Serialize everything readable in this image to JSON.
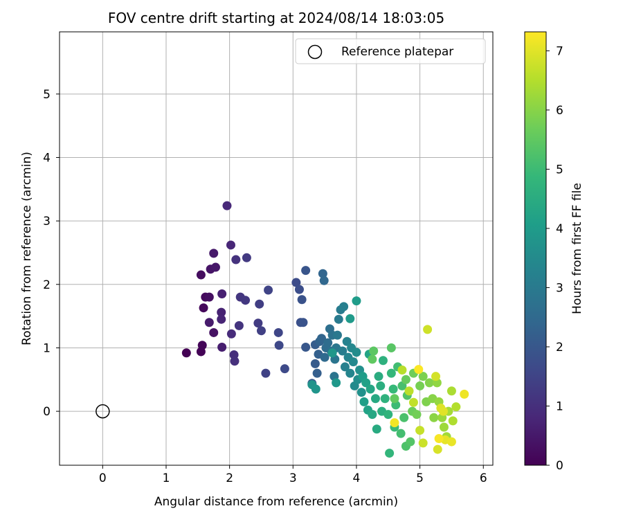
{
  "chart_data": {
    "type": "scatter",
    "title": "FOV centre drift starting at 2024/08/14 18:03:05",
    "xlabel": "Angular distance from reference (arcmin)",
    "ylabel": "Rotation from reference (arcmin)",
    "xlim": [
      -0.68,
      6.15
    ],
    "ylim": [
      -0.85,
      5.98
    ],
    "xticks": [
      0,
      1,
      2,
      3,
      4,
      5,
      6
    ],
    "yticks": [
      0,
      1,
      2,
      3,
      4,
      5
    ],
    "grid": true,
    "legend": {
      "position": "top-right",
      "entries": [
        "Reference platepar"
      ]
    },
    "colorbar": {
      "label": "Hours from first FF file",
      "range": [
        0,
        7.32
      ],
      "ticks": [
        0,
        1,
        2,
        3,
        4,
        5,
        6,
        7
      ],
      "colormap": "viridis"
    },
    "reference": {
      "x": 0,
      "y": 0
    },
    "points": [
      [
        1.32,
        0.92,
        0.0
      ],
      [
        1.55,
        0.94,
        0.05
      ],
      [
        1.57,
        1.04,
        0.1
      ],
      [
        1.59,
        1.63,
        0.15
      ],
      [
        1.62,
        1.8,
        0.2
      ],
      [
        1.55,
        2.15,
        0.25
      ],
      [
        1.68,
        1.8,
        0.3
      ],
      [
        1.75,
        1.24,
        0.35
      ],
      [
        1.7,
        2.24,
        0.4
      ],
      [
        1.78,
        2.27,
        0.45
      ],
      [
        1.75,
        2.49,
        0.5
      ],
      [
        1.68,
        1.4,
        0.55
      ],
      [
        1.88,
        1.01,
        0.6
      ],
      [
        1.88,
        1.85,
        0.65
      ],
      [
        1.87,
        1.56,
        0.7
      ],
      [
        1.87,
        1.45,
        0.75
      ],
      [
        2.02,
        2.62,
        0.8
      ],
      [
        1.96,
        3.24,
        0.85
      ],
      [
        2.03,
        1.22,
        0.9
      ],
      [
        2.07,
        0.89,
        0.95
      ],
      [
        2.08,
        0.79,
        1.0
      ],
      [
        2.1,
        2.39,
        1.05
      ],
      [
        2.15,
        1.35,
        1.1
      ],
      [
        2.17,
        1.8,
        1.15
      ],
      [
        2.25,
        1.75,
        1.2
      ],
      [
        2.27,
        2.42,
        1.25
      ],
      [
        2.45,
        1.39,
        1.3
      ],
      [
        2.47,
        1.69,
        1.35
      ],
      [
        2.5,
        1.27,
        1.4
      ],
      [
        2.57,
        0.6,
        1.45
      ],
      [
        2.61,
        1.91,
        1.5
      ],
      [
        2.77,
        1.24,
        1.55
      ],
      [
        2.78,
        1.04,
        1.6
      ],
      [
        2.87,
        0.67,
        1.65
      ],
      [
        3.05,
        2.03,
        1.7
      ],
      [
        3.1,
        1.92,
        1.75
      ],
      [
        3.12,
        1.4,
        1.8
      ],
      [
        3.14,
        1.76,
        1.85
      ],
      [
        3.16,
        1.4,
        1.9
      ],
      [
        3.2,
        2.22,
        1.95
      ],
      [
        3.2,
        1.01,
        2.0
      ],
      [
        3.3,
        0.44,
        2.05
      ],
      [
        3.35,
        0.75,
        2.1
      ],
      [
        3.35,
        1.05,
        2.15
      ],
      [
        3.38,
        0.6,
        2.2
      ],
      [
        3.4,
        0.9,
        2.25
      ],
      [
        3.42,
        1.1,
        2.3
      ],
      [
        3.45,
        1.15,
        2.35
      ],
      [
        3.47,
        2.17,
        2.4
      ],
      [
        3.49,
        2.06,
        2.45
      ],
      [
        3.5,
        0.85,
        2.5
      ],
      [
        3.52,
        1.0,
        2.55
      ],
      [
        3.55,
        1.08,
        2.6
      ],
      [
        3.58,
        1.3,
        2.65
      ],
      [
        3.6,
        0.95,
        2.7
      ],
      [
        3.62,
        1.2,
        2.75
      ],
      [
        3.65,
        0.55,
        2.8
      ],
      [
        3.66,
        0.82,
        2.85
      ],
      [
        3.68,
        1.0,
        2.9
      ],
      [
        3.7,
        1.2,
        2.95
      ],
      [
        3.72,
        1.45,
        3.0
      ],
      [
        3.75,
        1.6,
        3.05
      ],
      [
        3.78,
        0.95,
        3.1
      ],
      [
        3.8,
        1.65,
        3.15
      ],
      [
        3.82,
        0.7,
        3.2
      ],
      [
        3.85,
        1.1,
        3.25
      ],
      [
        3.87,
        0.85,
        3.3
      ],
      [
        3.9,
        0.6,
        3.35
      ],
      [
        3.92,
        1.0,
        3.4
      ],
      [
        3.95,
        0.78,
        3.45
      ],
      [
        3.97,
        0.4,
        3.5
      ],
      [
        4.0,
        0.93,
        3.55
      ],
      [
        4.02,
        0.5,
        3.6
      ],
      [
        4.05,
        0.65,
        3.65
      ],
      [
        4.08,
        0.3,
        3.7
      ],
      [
        3.3,
        0.42,
        3.75
      ],
      [
        3.36,
        0.35,
        3.8
      ],
      [
        3.62,
        0.92,
        3.85
      ],
      [
        3.68,
        0.45,
        3.9
      ],
      [
        3.9,
        1.46,
        3.95
      ],
      [
        4.0,
        1.74,
        4.0
      ],
      [
        4.1,
        0.55,
        4.05
      ],
      [
        4.12,
        0.15,
        4.1
      ],
      [
        4.15,
        0.45,
        4.15
      ],
      [
        4.18,
        0.02,
        4.2
      ],
      [
        4.2,
        0.9,
        4.25
      ],
      [
        4.22,
        0.35,
        4.3
      ],
      [
        4.25,
        -0.05,
        4.35
      ],
      [
        4.3,
        0.2,
        4.4
      ],
      [
        4.32,
        -0.28,
        4.45
      ],
      [
        4.35,
        0.55,
        4.5
      ],
      [
        4.38,
        0.4,
        4.55
      ],
      [
        4.4,
        0.0,
        4.6
      ],
      [
        4.42,
        0.8,
        4.65
      ],
      [
        4.45,
        0.2,
        4.7
      ],
      [
        4.5,
        -0.05,
        4.75
      ],
      [
        4.52,
        -0.66,
        4.8
      ],
      [
        4.55,
        0.6,
        4.85
      ],
      [
        4.58,
        0.35,
        4.9
      ],
      [
        4.6,
        -0.25,
        4.95
      ],
      [
        4.62,
        0.1,
        5.0
      ],
      [
        4.65,
        0.7,
        5.05
      ],
      [
        4.7,
        -0.35,
        5.1
      ],
      [
        4.72,
        0.4,
        5.15
      ],
      [
        4.75,
        -0.1,
        5.2
      ],
      [
        4.78,
        -0.55,
        5.25
      ],
      [
        4.8,
        0.25,
        5.3
      ],
      [
        4.85,
        -0.48,
        5.35
      ],
      [
        4.55,
        1.0,
        5.4
      ],
      [
        4.27,
        0.95,
        5.45
      ],
      [
        4.25,
        0.82,
        5.5
      ],
      [
        4.6,
        0.2,
        5.55
      ],
      [
        4.78,
        0.5,
        5.6
      ],
      [
        4.88,
        0.0,
        5.65
      ],
      [
        4.9,
        0.6,
        5.7
      ],
      [
        4.95,
        -0.05,
        5.75
      ],
      [
        5.0,
        0.4,
        5.8
      ],
      [
        5.05,
        0.55,
        5.85
      ],
      [
        5.1,
        0.15,
        5.9
      ],
      [
        5.15,
        0.45,
        5.95
      ],
      [
        5.2,
        0.2,
        6.0
      ],
      [
        5.22,
        -0.1,
        6.05
      ],
      [
        5.27,
        0.45,
        6.1
      ],
      [
        5.3,
        0.15,
        6.15
      ],
      [
        5.35,
        -0.1,
        6.2
      ],
      [
        5.38,
        -0.25,
        6.25
      ],
      [
        5.42,
        -0.4,
        6.3
      ],
      [
        5.45,
        0.0,
        6.35
      ],
      [
        5.5,
        0.32,
        6.4
      ],
      [
        5.52,
        -0.15,
        6.45
      ],
      [
        5.57,
        0.07,
        6.5
      ],
      [
        4.72,
        0.65,
        6.55
      ],
      [
        4.83,
        0.32,
        6.6
      ],
      [
        4.9,
        0.14,
        6.65
      ],
      [
        5.0,
        -0.3,
        6.7
      ],
      [
        5.05,
        -0.5,
        6.75
      ],
      [
        5.12,
        1.29,
        6.8
      ],
      [
        5.25,
        0.55,
        6.85
      ],
      [
        5.28,
        -0.6,
        6.9
      ],
      [
        5.33,
        0.05,
        6.95
      ],
      [
        5.37,
        0.0,
        7.0
      ],
      [
        5.4,
        -0.45,
        7.05
      ],
      [
        5.5,
        -0.48,
        7.1
      ],
      [
        5.7,
        0.27,
        7.15
      ],
      [
        4.6,
        -0.18,
        7.2
      ],
      [
        5.3,
        -0.43,
        7.25
      ],
      [
        4.98,
        0.66,
        7.3
      ]
    ]
  }
}
